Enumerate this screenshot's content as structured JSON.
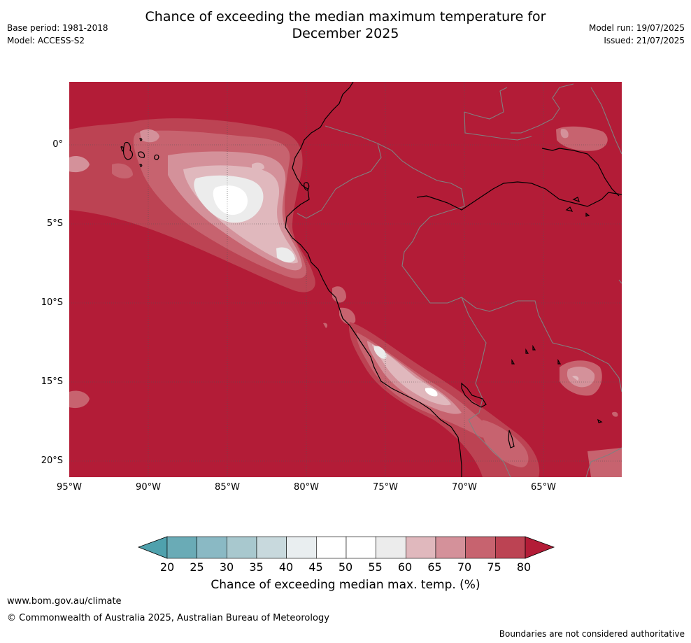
{
  "header": {
    "title_line1": "Chance of exceeding the median maximum temperature for",
    "title_line2": "December 2025",
    "base_period": "Base period: 1981-2018",
    "model": "Model: ACCESS-S2",
    "model_run": "Model run: 19/07/2025",
    "issued": "Issued: 21/07/2025"
  },
  "map": {
    "lat_labels": [
      "0°",
      "5°S",
      "10°S",
      "15°S",
      "20°S"
    ],
    "lon_labels": [
      "95°W",
      "90°W",
      "85°W",
      "80°W",
      "75°W",
      "70°W",
      "65°W"
    ],
    "background_color": "#b31c37"
  },
  "colorbar": {
    "ticks": [
      "20",
      "25",
      "30",
      "35",
      "40",
      "45",
      "50",
      "55",
      "60",
      "65",
      "70",
      "75",
      "80"
    ],
    "colors": [
      "#6aabb6",
      "#8ab9c4",
      "#a8c8ce",
      "#c8d9dd",
      "#e9eef0",
      "#ffffff",
      "#ffffff",
      "#ececec",
      "#e0b8bd",
      "#d4919a",
      "#c7636f",
      "#bc4353"
    ],
    "under_color": "#4fa1ad",
    "over_color": "#b31c37",
    "label": "Chance of exceeding median max. temp. (%)"
  },
  "footer": {
    "website": "www.bom.gov.au/climate",
    "copyright": "© Commonwealth of Australia 2025, Australian Bureau of Meteorology",
    "disclaimer": "Boundaries are not considered authoritative"
  }
}
